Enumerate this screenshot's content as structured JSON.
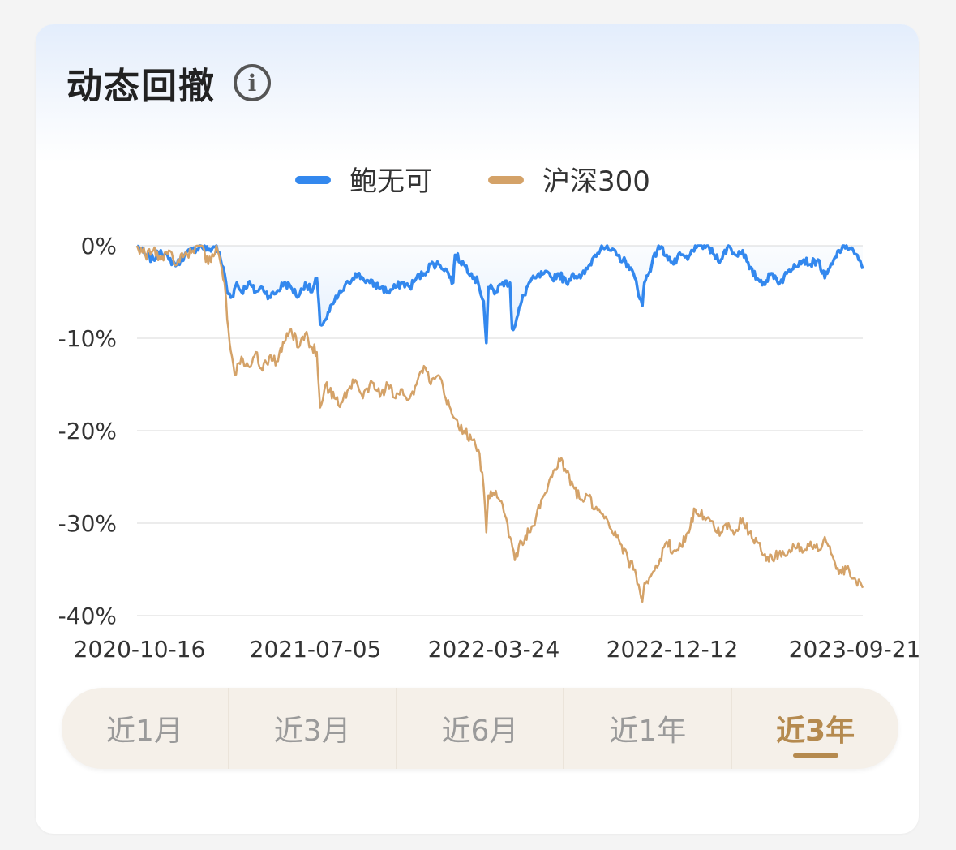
{
  "header": {
    "title": "动态回撤",
    "info_icon": "info-icon"
  },
  "tabs": [
    {
      "label": "近1月",
      "active": false
    },
    {
      "label": "近3月",
      "active": false
    },
    {
      "label": "近6月",
      "active": false
    },
    {
      "label": "近1年",
      "active": false
    },
    {
      "label": "近3年",
      "active": true
    }
  ],
  "colors": {
    "fund": "#3388ee",
    "index": "#d4a268",
    "active_tab": "#b58a4f"
  },
  "chart_data": {
    "type": "line",
    "title": "",
    "xlabel": "",
    "ylabel": "",
    "x_tick_labels": [
      "2020-10-16",
      "2021-07-05",
      "2022-03-24",
      "2022-12-12",
      "2023-09-21"
    ],
    "y_tick_labels": [
      "0%",
      "-10%",
      "-20%",
      "-30%",
      "-40%"
    ],
    "ylim": [
      -40,
      0
    ],
    "grid": true,
    "legend_position": "top-center",
    "series": [
      {
        "name": "鲍无可",
        "fill": true,
        "points": [
          [
            "2020-10-16",
            0
          ],
          [
            "2020-10-28",
            -1
          ],
          [
            "2020-11-09",
            -1.5
          ],
          [
            "2020-11-20",
            -0.5
          ],
          [
            "2020-12-02",
            -1.5
          ],
          [
            "2020-12-14",
            -2
          ],
          [
            "2020-12-25",
            -1
          ],
          [
            "2021-01-06",
            -0.5
          ],
          [
            "2021-01-18",
            0
          ],
          [
            "2021-01-29",
            -0.5
          ],
          [
            "2021-02-10",
            0
          ],
          [
            "2021-02-22",
            -3
          ],
          [
            "2021-02-26",
            -5
          ],
          [
            "2021-03-05",
            -5.5
          ],
          [
            "2021-03-12",
            -4
          ],
          [
            "2021-03-19",
            -5
          ],
          [
            "2021-03-29",
            -4
          ],
          [
            "2021-04-09",
            -5
          ],
          [
            "2021-04-19",
            -4.5
          ],
          [
            "2021-04-29",
            -5.5
          ],
          [
            "2021-05-10",
            -5
          ],
          [
            "2021-05-21",
            -4
          ],
          [
            "2021-05-31",
            -4.5
          ],
          [
            "2021-06-11",
            -5.5
          ],
          [
            "2021-06-21",
            -4
          ],
          [
            "2021-07-01",
            -5
          ],
          [
            "2021-07-08",
            -3.5
          ],
          [
            "2021-07-13",
            -8.5
          ],
          [
            "2021-07-21",
            -8
          ],
          [
            "2021-08-03",
            -6
          ],
          [
            "2021-08-13",
            -5
          ],
          [
            "2021-08-24",
            -4
          ],
          [
            "2021-09-03",
            -3
          ],
          [
            "2021-09-14",
            -3.5
          ],
          [
            "2021-09-24",
            -4
          ],
          [
            "2021-10-11",
            -4.5
          ],
          [
            "2021-10-21",
            -5
          ],
          [
            "2021-11-01",
            -4.5
          ],
          [
            "2021-11-11",
            -4
          ],
          [
            "2021-11-22",
            -4.5
          ],
          [
            "2021-12-02",
            -3.5
          ],
          [
            "2021-12-13",
            -3
          ],
          [
            "2021-12-23",
            -2
          ],
          [
            "2022-01-04",
            -2
          ],
          [
            "2022-01-14",
            -2.5
          ],
          [
            "2022-01-25",
            -4
          ],
          [
            "2022-01-28",
            -1
          ],
          [
            "2022-02-10",
            -2
          ],
          [
            "2022-02-21",
            -3
          ],
          [
            "2022-03-03",
            -4
          ],
          [
            "2022-03-11",
            -6
          ],
          [
            "2022-03-15",
            -10.5
          ],
          [
            "2022-03-18",
            -4.5
          ],
          [
            "2022-03-29",
            -5
          ],
          [
            "2022-04-08",
            -4
          ],
          [
            "2022-04-19",
            -4
          ],
          [
            "2022-04-22",
            -9
          ],
          [
            "2022-04-27",
            -8.5
          ],
          [
            "2022-05-06",
            -6
          ],
          [
            "2022-05-17",
            -4
          ],
          [
            "2022-05-27",
            -3.5
          ],
          [
            "2022-06-08",
            -3
          ],
          [
            "2022-06-20",
            -3.5
          ],
          [
            "2022-06-30",
            -3
          ],
          [
            "2022-07-11",
            -4
          ],
          [
            "2022-07-21",
            -3
          ],
          [
            "2022-08-01",
            -3.5
          ],
          [
            "2022-08-11",
            -2.5
          ],
          [
            "2022-08-22",
            -1
          ],
          [
            "2022-09-01",
            0
          ],
          [
            "2022-09-13",
            -0.5
          ],
          [
            "2022-09-23",
            -1
          ],
          [
            "2022-10-10",
            -2
          ],
          [
            "2022-10-20",
            -3.5
          ],
          [
            "2022-10-31",
            -6.5
          ],
          [
            "2022-11-03",
            -4
          ],
          [
            "2022-11-14",
            -2
          ],
          [
            "2022-11-24",
            0
          ],
          [
            "2022-12-06",
            -1
          ],
          [
            "2022-12-16",
            -2
          ],
          [
            "2022-12-27",
            -1
          ],
          [
            "2023-01-06",
            -1.5
          ],
          [
            "2023-01-17",
            0
          ],
          [
            "2023-02-03",
            0
          ],
          [
            "2023-02-14",
            -1
          ],
          [
            "2023-02-24",
            -1.5
          ],
          [
            "2023-03-07",
            0
          ],
          [
            "2023-03-17",
            -1
          ],
          [
            "2023-03-28",
            -0.5
          ],
          [
            "2023-04-07",
            -2.5
          ],
          [
            "2023-04-18",
            -3.5
          ],
          [
            "2023-04-28",
            -4
          ],
          [
            "2023-05-11",
            -3
          ],
          [
            "2023-05-22",
            -4
          ],
          [
            "2023-06-01",
            -3
          ],
          [
            "2023-06-12",
            -2
          ],
          [
            "2023-06-26",
            -1.5
          ],
          [
            "2023-07-06",
            -2
          ],
          [
            "2023-07-17",
            -1.5
          ],
          [
            "2023-07-27",
            -3.5
          ],
          [
            "2023-08-07",
            -2
          ],
          [
            "2023-08-17",
            -0.5
          ],
          [
            "2023-08-28",
            0
          ],
          [
            "2023-09-07",
            -0.5
          ],
          [
            "2023-09-21",
            -2.5
          ]
        ]
      },
      {
        "name": "沪深300",
        "fill": false,
        "points": [
          [
            "2020-10-16",
            0
          ],
          [
            "2020-10-28",
            -1
          ],
          [
            "2020-11-09",
            -0.5
          ],
          [
            "2020-11-20",
            -1.5
          ],
          [
            "2020-12-02",
            -0.5
          ],
          [
            "2020-12-14",
            -2
          ],
          [
            "2020-12-25",
            -1
          ],
          [
            "2021-01-06",
            -0.5
          ],
          [
            "2021-01-18",
            0
          ],
          [
            "2021-01-29",
            -2
          ],
          [
            "2021-02-10",
            0
          ],
          [
            "2021-02-22",
            -4
          ],
          [
            "2021-02-26",
            -8
          ],
          [
            "2021-03-05",
            -12
          ],
          [
            "2021-03-09",
            -14
          ],
          [
            "2021-03-19",
            -12
          ],
          [
            "2021-03-29",
            -13
          ],
          [
            "2021-04-09",
            -11.5
          ],
          [
            "2021-04-19",
            -13.5
          ],
          [
            "2021-04-29",
            -12
          ],
          [
            "2021-05-10",
            -12.5
          ],
          [
            "2021-05-21",
            -10.5
          ],
          [
            "2021-05-31",
            -9
          ],
          [
            "2021-06-11",
            -11
          ],
          [
            "2021-06-21",
            -9.5
          ],
          [
            "2021-07-01",
            -11
          ],
          [
            "2021-07-08",
            -11.5
          ],
          [
            "2021-07-13",
            -17.5
          ],
          [
            "2021-07-21",
            -15
          ],
          [
            "2021-08-03",
            -16.5
          ],
          [
            "2021-08-13",
            -17
          ],
          [
            "2021-08-24",
            -15.5
          ],
          [
            "2021-09-03",
            -14.5
          ],
          [
            "2021-09-14",
            -16.5
          ],
          [
            "2021-09-24",
            -15
          ],
          [
            "2021-10-11",
            -16
          ],
          [
            "2021-10-21",
            -15
          ],
          [
            "2021-11-01",
            -16.5
          ],
          [
            "2021-11-11",
            -15.5
          ],
          [
            "2021-11-22",
            -16.5
          ],
          [
            "2021-12-02",
            -15
          ],
          [
            "2021-12-13",
            -13
          ],
          [
            "2021-12-23",
            -15
          ],
          [
            "2022-01-04",
            -14
          ],
          [
            "2022-01-14",
            -16.5
          ],
          [
            "2022-01-25",
            -18.5
          ],
          [
            "2022-02-10",
            -20
          ],
          [
            "2022-02-21",
            -21
          ],
          [
            "2022-03-03",
            -22
          ],
          [
            "2022-03-11",
            -26
          ],
          [
            "2022-03-15",
            -31
          ],
          [
            "2022-03-18",
            -27
          ],
          [
            "2022-03-29",
            -26.5
          ],
          [
            "2022-04-08",
            -28
          ],
          [
            "2022-04-19",
            -31.5
          ],
          [
            "2022-04-26",
            -34
          ],
          [
            "2022-05-06",
            -32
          ],
          [
            "2022-05-17",
            -31
          ],
          [
            "2022-05-27",
            -29.5
          ],
          [
            "2022-06-08",
            -27
          ],
          [
            "2022-06-20",
            -25
          ],
          [
            "2022-06-30",
            -23
          ],
          [
            "2022-07-11",
            -24.5
          ],
          [
            "2022-07-21",
            -26
          ],
          [
            "2022-08-01",
            -27.5
          ],
          [
            "2022-08-11",
            -27
          ],
          [
            "2022-08-22",
            -28.5
          ],
          [
            "2022-09-01",
            -29
          ],
          [
            "2022-09-13",
            -30.5
          ],
          [
            "2022-09-23",
            -31.5
          ],
          [
            "2022-10-10",
            -34
          ],
          [
            "2022-10-20",
            -35
          ],
          [
            "2022-10-31",
            -38.5
          ],
          [
            "2022-11-03",
            -36.5
          ],
          [
            "2022-11-14",
            -35.5
          ],
          [
            "2022-11-24",
            -34.5
          ],
          [
            "2022-12-06",
            -32
          ],
          [
            "2022-12-16",
            -33
          ],
          [
            "2022-12-27",
            -32.5
          ],
          [
            "2023-01-06",
            -31
          ],
          [
            "2023-01-17",
            -28.5
          ],
          [
            "2023-02-03",
            -29.5
          ],
          [
            "2023-02-14",
            -30.5
          ],
          [
            "2023-02-24",
            -31
          ],
          [
            "2023-03-07",
            -30
          ],
          [
            "2023-03-17",
            -31
          ],
          [
            "2023-03-28",
            -29.5
          ],
          [
            "2023-04-07",
            -31
          ],
          [
            "2023-04-18",
            -32
          ],
          [
            "2023-04-28",
            -33.5
          ],
          [
            "2023-05-11",
            -34
          ],
          [
            "2023-05-22",
            -33
          ],
          [
            "2023-06-01",
            -33.5
          ],
          [
            "2023-06-12",
            -32.5
          ],
          [
            "2023-06-26",
            -33
          ],
          [
            "2023-07-06",
            -32
          ],
          [
            "2023-07-17",
            -33
          ],
          [
            "2023-07-27",
            -31.5
          ],
          [
            "2023-08-07",
            -33.5
          ],
          [
            "2023-08-17",
            -35.5
          ],
          [
            "2023-08-28",
            -35
          ],
          [
            "2023-09-07",
            -36
          ],
          [
            "2023-09-21",
            -37
          ]
        ]
      }
    ]
  }
}
